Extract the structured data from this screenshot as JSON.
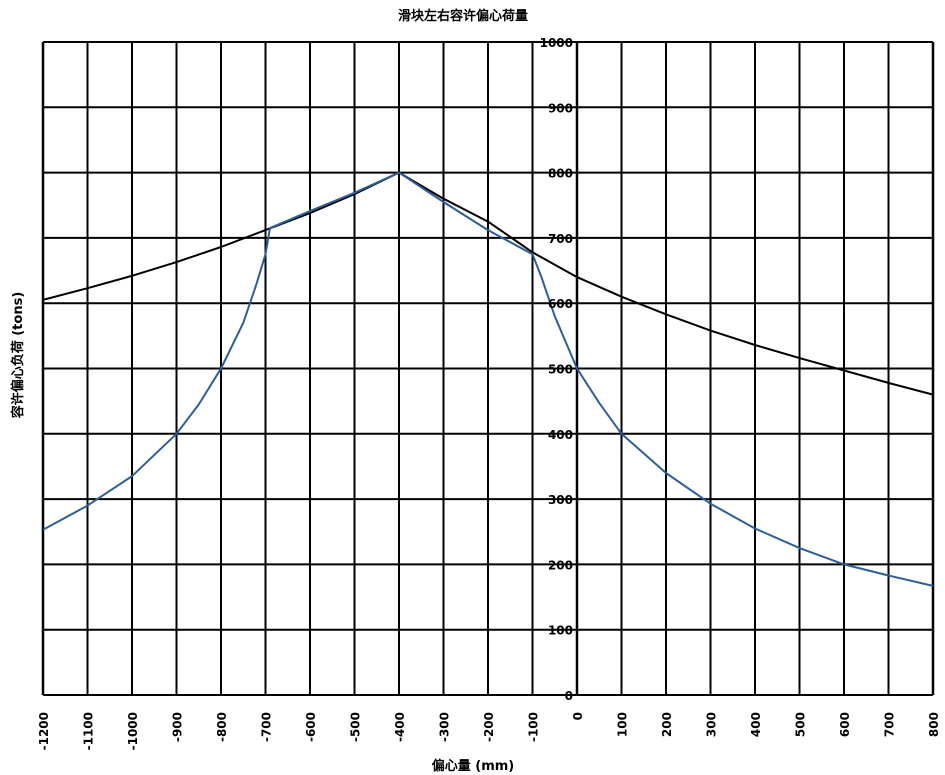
{
  "chart_data": {
    "type": "line",
    "title": "滑块左右容许偏心荷量",
    "xlabel": "偏心量 (mm)",
    "ylabel": "容许偏心负荷 (tons)",
    "xlim": [
      -1200,
      800
    ],
    "ylim": [
      0,
      1000
    ],
    "x_ticks": [
      -1200,
      -1100,
      -1000,
      -900,
      -800,
      -700,
      -600,
      -500,
      -400,
      -300,
      -200,
      -100,
      0,
      100,
      200,
      300,
      400,
      500,
      600,
      700,
      800
    ],
    "y_ticks": [
      0,
      100,
      200,
      300,
      400,
      500,
      600,
      700,
      800,
      900,
      1000
    ],
    "grid": true,
    "series": [
      {
        "color": "#000000",
        "points": [
          [
            -1200,
            605
          ],
          [
            -1100,
            623
          ],
          [
            -1000,
            642
          ],
          [
            -900,
            663
          ],
          [
            -800,
            686
          ],
          [
            -700,
            712
          ],
          [
            -600,
            738
          ],
          [
            -500,
            767
          ],
          [
            -400,
            800
          ],
          [
            -300,
            760
          ],
          [
            -200,
            725
          ],
          [
            -100,
            678
          ],
          [
            0,
            640
          ],
          [
            100,
            610
          ],
          [
            200,
            583
          ],
          [
            300,
            558
          ],
          [
            400,
            536
          ],
          [
            500,
            516
          ],
          [
            600,
            497
          ],
          [
            700,
            478
          ],
          [
            800,
            460
          ]
        ]
      },
      {
        "color": "#2e5e96",
        "points": [
          [
            -1200,
            253
          ],
          [
            -1100,
            290
          ],
          [
            -1000,
            335
          ],
          [
            -900,
            400
          ],
          [
            -850,
            445
          ],
          [
            -800,
            500
          ],
          [
            -750,
            570
          ],
          [
            -720,
            630
          ],
          [
            -700,
            675
          ],
          [
            -690,
            715
          ],
          [
            -600,
            741
          ],
          [
            -500,
            769
          ],
          [
            -400,
            800
          ],
          [
            -300,
            755
          ],
          [
            -200,
            712
          ],
          [
            -100,
            675
          ],
          [
            -80,
            640
          ],
          [
            -50,
            580
          ],
          [
            0,
            500
          ],
          [
            50,
            447
          ],
          [
            100,
            400
          ],
          [
            200,
            340
          ],
          [
            300,
            293
          ],
          [
            400,
            255
          ],
          [
            500,
            225
          ],
          [
            600,
            200
          ],
          [
            700,
            183
          ],
          [
            800,
            167
          ]
        ]
      }
    ]
  }
}
